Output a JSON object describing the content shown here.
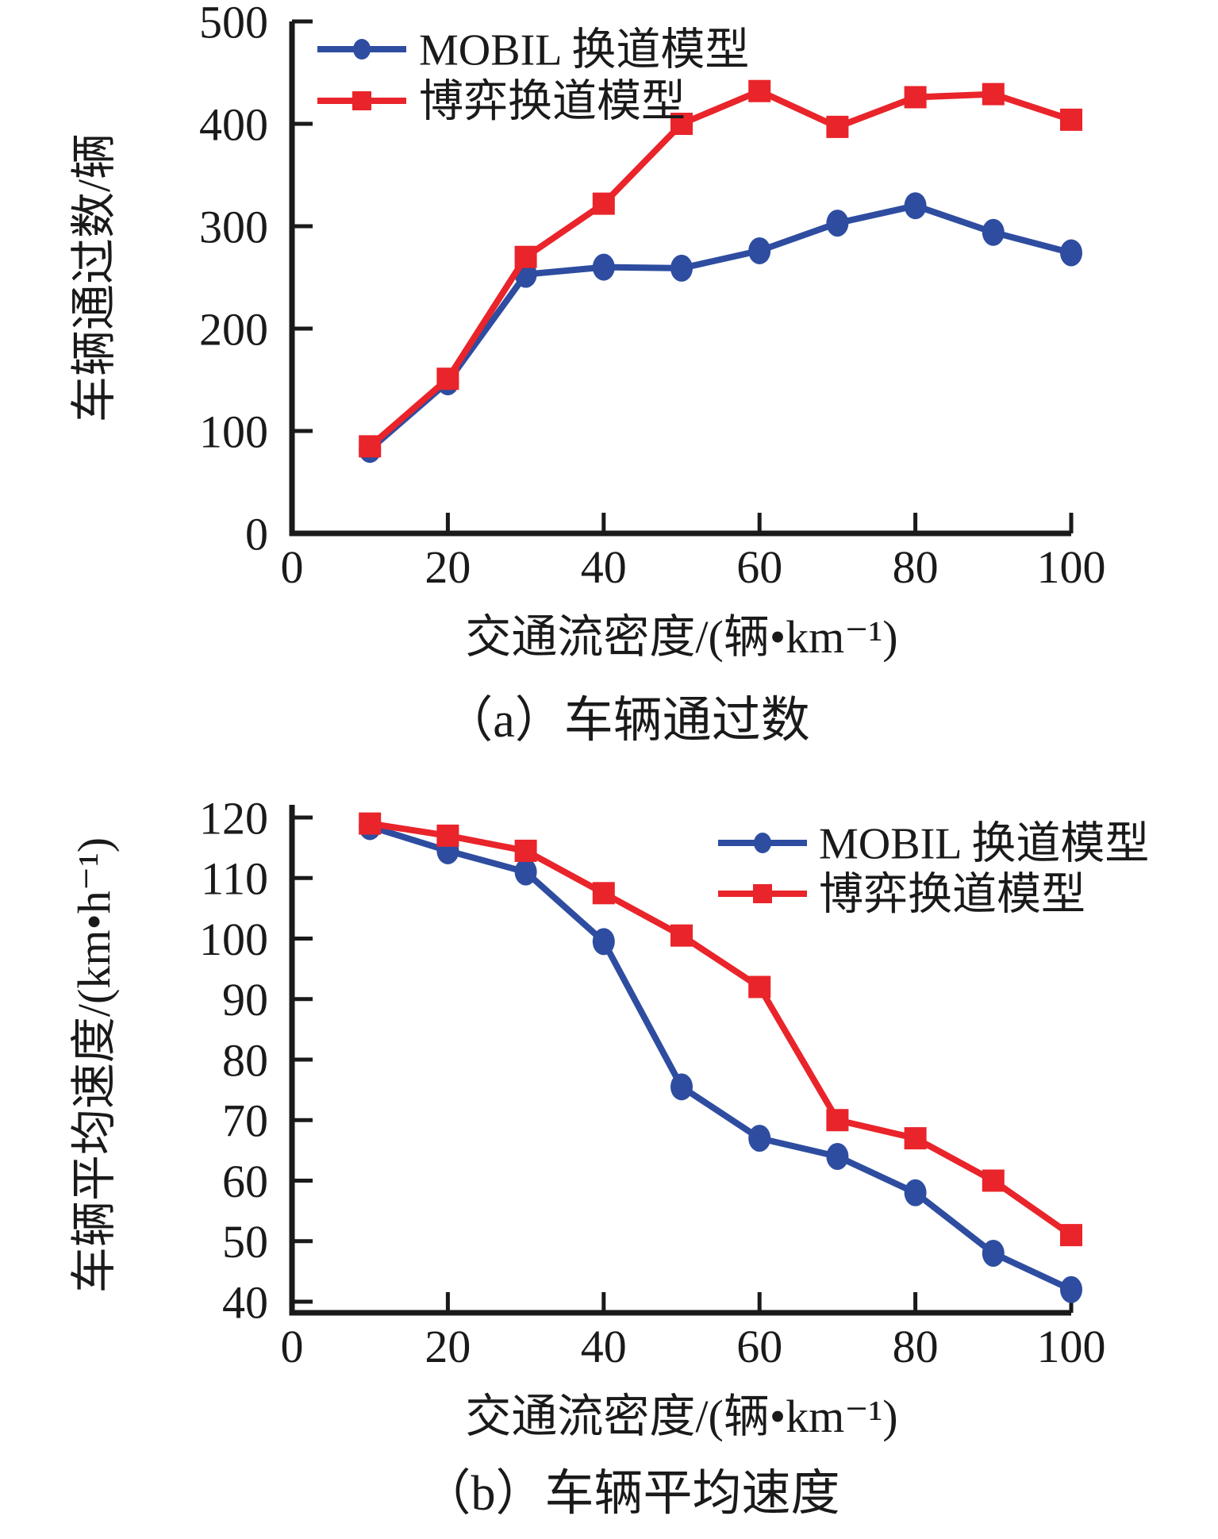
{
  "colors": {
    "mobil": "#2e4da0",
    "game": "#e9242a",
    "axis": "#1a1a1a",
    "background": "#ffffff"
  },
  "chart_data": [
    {
      "type": "line",
      "title": "（a）车辆通过数",
      "xlabel": "交通流密度/(辆•km⁻¹)",
      "ylabel": "车辆通过数/辆",
      "x": [
        10,
        20,
        30,
        40,
        50,
        60,
        70,
        80,
        90,
        100
      ],
      "xlim": [
        0,
        100
      ],
      "ylim": [
        0,
        500
      ],
      "xticks": [
        0,
        20,
        40,
        60,
        80,
        100
      ],
      "yticks": [
        0,
        100,
        200,
        300,
        400,
        500
      ],
      "grid": false,
      "legend_position": "top-left",
      "series": [
        {
          "name": "MOBIL 换道模型",
          "marker": "circle",
          "color": "mobil",
          "values": [
            82,
            148,
            253,
            260,
            259,
            276,
            303,
            320,
            294,
            274
          ]
        },
        {
          "name": "博弈换道模型",
          "marker": "square",
          "color": "game",
          "values": [
            85,
            151,
            270,
            322,
            400,
            432,
            397,
            426,
            429,
            404
          ]
        }
      ]
    },
    {
      "type": "line",
      "title": "（b）车辆平均速度",
      "xlabel": "交通流密度/(辆•km⁻¹)",
      "ylabel": "车辆平均速度/(km•h⁻¹)",
      "x": [
        10,
        20,
        30,
        40,
        50,
        60,
        70,
        80,
        90,
        100
      ],
      "xlim": [
        0,
        100
      ],
      "ylim": [
        40,
        120
      ],
      "xticks": [
        0,
        20,
        40,
        60,
        80,
        100
      ],
      "yticks": [
        40,
        50,
        60,
        70,
        80,
        90,
        100,
        110,
        120
      ],
      "grid": false,
      "legend_position": "top-right",
      "series": [
        {
          "name": "MOBIL 换道模型",
          "marker": "circle",
          "color": "mobil",
          "values": [
            118.5,
            114.5,
            111,
            99.5,
            75.5,
            67,
            64,
            58,
            48,
            42
          ]
        },
        {
          "name": "博弈换道模型",
          "marker": "square",
          "color": "game",
          "values": [
            119,
            117,
            114.5,
            107.5,
            100.5,
            92,
            70,
            67,
            60,
            51
          ]
        }
      ]
    }
  ]
}
